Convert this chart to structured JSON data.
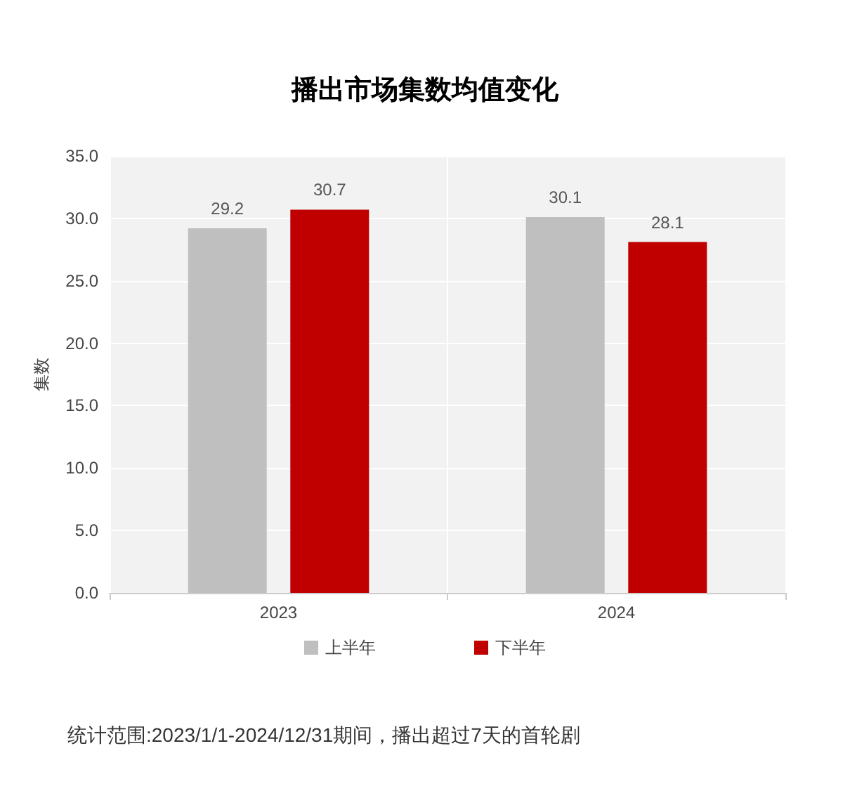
{
  "chart_data": {
    "type": "bar",
    "title": "播出市场集数均值变化",
    "ylabel": "集数",
    "categories": [
      "2023",
      "2024"
    ],
    "series": [
      {
        "name": "上半年",
        "color": "#bfbfbf",
        "values": [
          29.2,
          30.1
        ]
      },
      {
        "name": "下半年",
        "color": "#c00000",
        "values": [
          30.7,
          28.1
        ]
      }
    ],
    "ylim": [
      0,
      35
    ],
    "yticks": [
      {
        "value": 0,
        "label": "0.0"
      },
      {
        "value": 5,
        "label": "5.0"
      },
      {
        "value": 10,
        "label": "10.0"
      },
      {
        "value": 15,
        "label": "15.0"
      },
      {
        "value": 20,
        "label": "20.0"
      },
      {
        "value": 25,
        "label": "25.0"
      },
      {
        "value": 30,
        "label": "30.0"
      },
      {
        "value": 35,
        "label": "35.0"
      }
    ],
    "grid": "y",
    "legend": "bottom",
    "data_labels": true,
    "annotations": [
      "统计范围:2023/1/1-2024/12/31期间，播出超过7天的首轮剧"
    ]
  }
}
